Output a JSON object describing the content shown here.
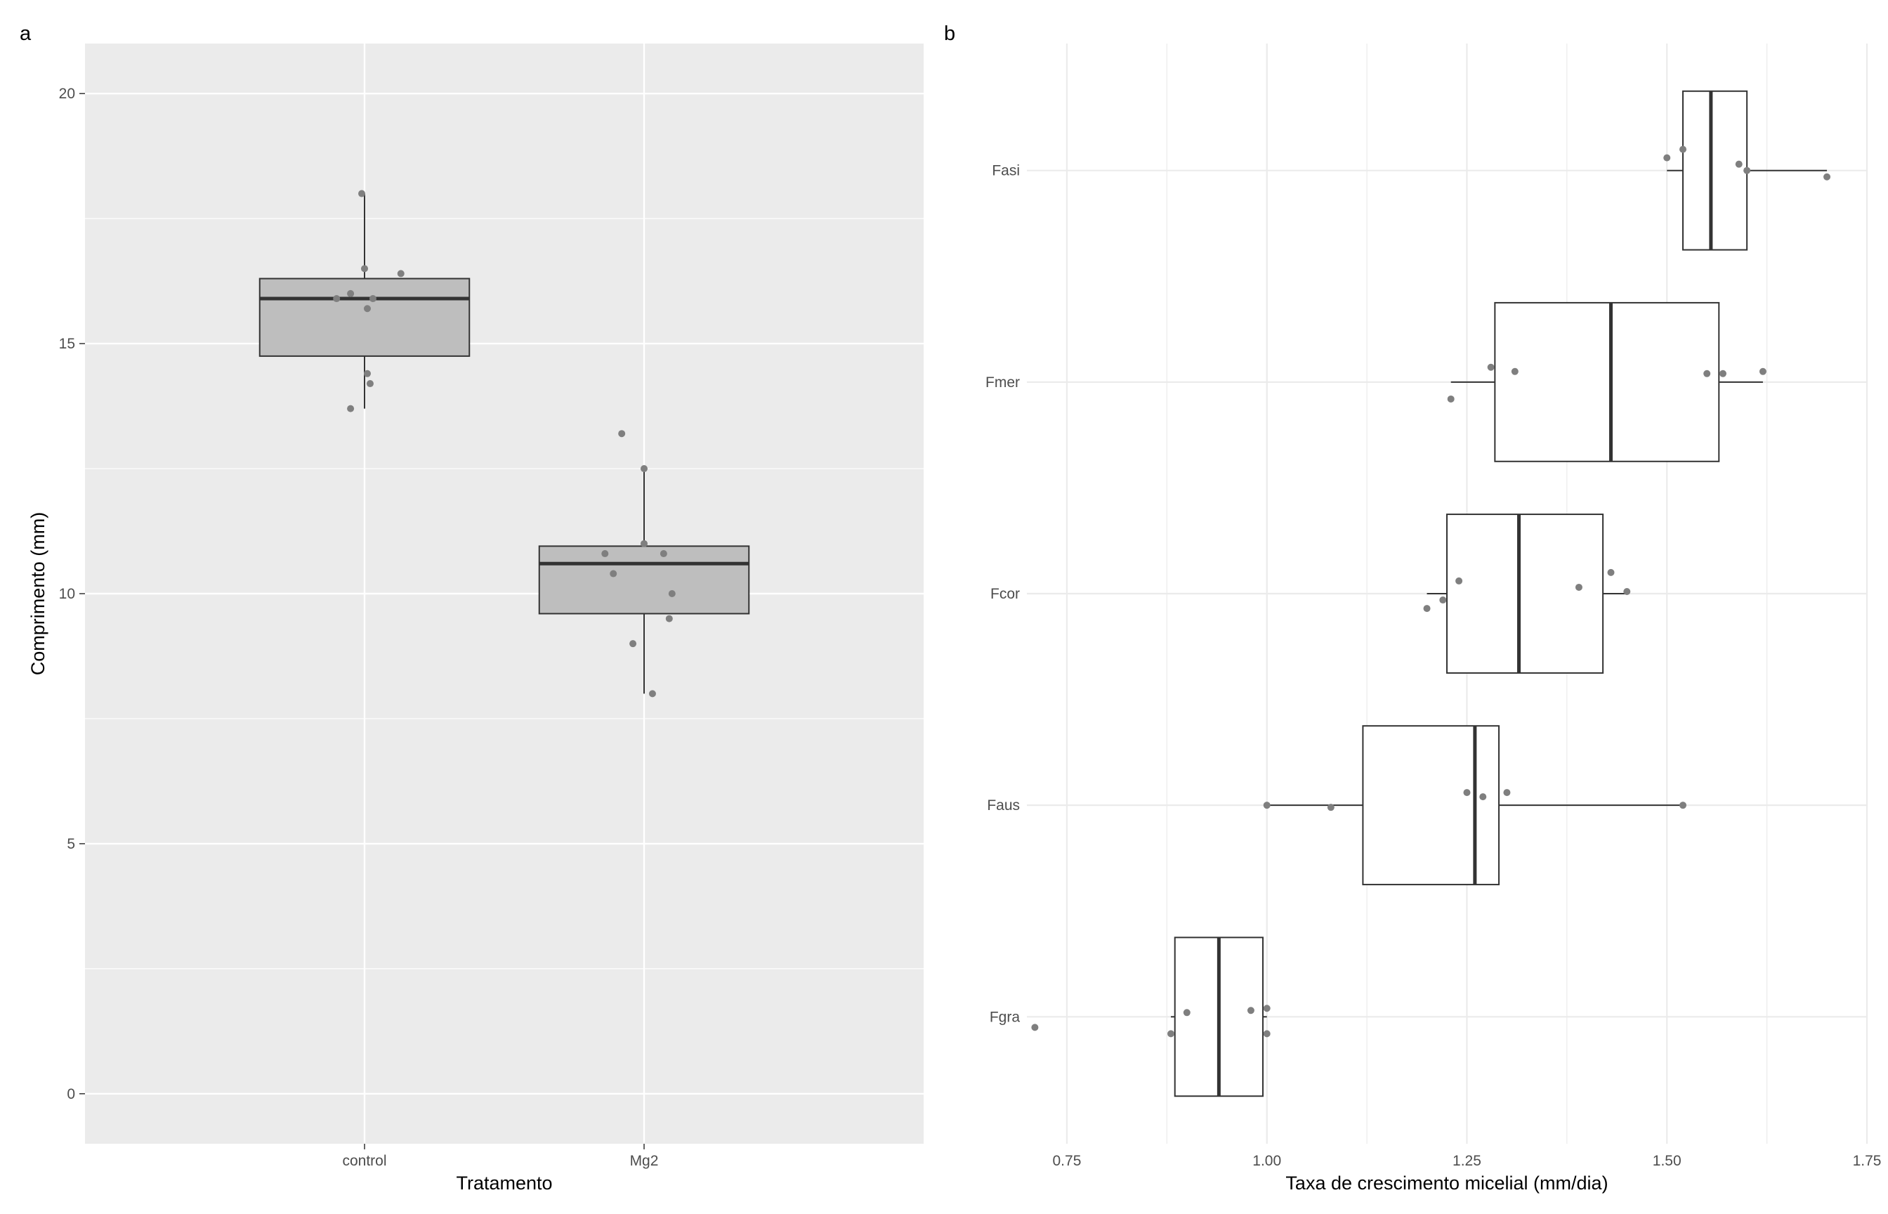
{
  "chart_data": [
    {
      "panel_label": "a",
      "type": "boxplot",
      "orientation": "vertical",
      "theme": "grey",
      "grid": true,
      "xlabel": "Tratamento",
      "ylabel": "Comprimento (mm)",
      "categories": [
        "control",
        "Mg2"
      ],
      "ylim": [
        -1,
        21
      ],
      "yticks": [
        0,
        5,
        10,
        15,
        20
      ],
      "box_fill": "#bebebe",
      "point_color": "#7f7f7f",
      "boxes": [
        {
          "category": "control",
          "whisker_low": 13.7,
          "q1": 14.75,
          "median": 15.9,
          "q3": 16.3,
          "whisker_high": 18.0
        },
        {
          "category": "Mg2",
          "whisker_low": 8.0,
          "q1": 9.6,
          "median": 10.6,
          "q3": 10.95,
          "whisker_high": 12.5
        }
      ],
      "points": [
        {
          "category": "control",
          "jitter": -0.1,
          "value": 15.9
        },
        {
          "category": "control",
          "jitter": -0.05,
          "value": 16.0
        },
        {
          "category": "control",
          "jitter": -0.01,
          "value": 18.0
        },
        {
          "category": "control",
          "jitter": 0.0,
          "value": 16.5
        },
        {
          "category": "control",
          "jitter": 0.01,
          "value": 15.7
        },
        {
          "category": "control",
          "jitter": 0.03,
          "value": 15.9
        },
        {
          "category": "control",
          "jitter": 0.13,
          "value": 16.4
        },
        {
          "category": "control",
          "jitter": 0.01,
          "value": 14.4
        },
        {
          "category": "control",
          "jitter": 0.02,
          "value": 14.2
        },
        {
          "category": "control",
          "jitter": -0.05,
          "value": 13.7
        },
        {
          "category": "Mg2",
          "jitter": -0.08,
          "value": 13.2
        },
        {
          "category": "Mg2",
          "jitter": 0.0,
          "value": 12.5
        },
        {
          "category": "Mg2",
          "jitter": 0.0,
          "value": 11.0
        },
        {
          "category": "Mg2",
          "jitter": -0.14,
          "value": 10.8
        },
        {
          "category": "Mg2",
          "jitter": 0.07,
          "value": 10.8
        },
        {
          "category": "Mg2",
          "jitter": -0.11,
          "value": 10.4
        },
        {
          "category": "Mg2",
          "jitter": 0.1,
          "value": 10.0
        },
        {
          "category": "Mg2",
          "jitter": 0.09,
          "value": 9.5
        },
        {
          "category": "Mg2",
          "jitter": -0.04,
          "value": 9.0
        },
        {
          "category": "Mg2",
          "jitter": 0.03,
          "value": 8.0
        }
      ]
    },
    {
      "panel_label": "b",
      "type": "boxplot",
      "orientation": "horizontal",
      "theme": "minimal",
      "grid": true,
      "xlabel": "Taxa de crescimento micelial (mm/dia)",
      "ylabel": "",
      "categories": [
        "Fgra",
        "Faus",
        "Fcor",
        "Fmer",
        "Fasi"
      ],
      "xlim": [
        0.7,
        1.75
      ],
      "xticks": [
        0.75,
        1.0,
        1.25,
        1.5,
        1.75
      ],
      "xtick_labels": [
        "0.75",
        "1.00",
        "1.25",
        "1.50",
        "1.75"
      ],
      "box_fill": "#ffffff",
      "point_color": "#7f7f7f",
      "boxes": [
        {
          "category": "Fgra",
          "whisker_low": 0.88,
          "q1": 0.885,
          "median": 0.94,
          "q3": 0.995,
          "whisker_high": 1.0
        },
        {
          "category": "Faus",
          "whisker_low": 1.0,
          "q1": 1.12,
          "median": 1.26,
          "q3": 1.29,
          "whisker_high": 1.52
        },
        {
          "category": "Fcor",
          "whisker_low": 1.2,
          "q1": 1.225,
          "median": 1.315,
          "q3": 1.42,
          "whisker_high": 1.45
        },
        {
          "category": "Fmer",
          "whisker_low": 1.23,
          "q1": 1.285,
          "median": 1.43,
          "q3": 1.565,
          "whisker_high": 1.62
        },
        {
          "category": "Fasi",
          "whisker_low": 1.5,
          "q1": 1.52,
          "median": 1.555,
          "q3": 1.6,
          "whisker_high": 1.7
        }
      ],
      "points": [
        {
          "category": "Fgra",
          "value": 0.71,
          "jitter": -0.05
        },
        {
          "category": "Fgra",
          "value": 0.88,
          "jitter": -0.08
        },
        {
          "category": "Fgra",
          "value": 0.9,
          "jitter": 0.02
        },
        {
          "category": "Fgra",
          "value": 0.98,
          "jitter": 0.03
        },
        {
          "category": "Fgra",
          "value": 1.0,
          "jitter": 0.04
        },
        {
          "category": "Fgra",
          "value": 1.0,
          "jitter": -0.08
        },
        {
          "category": "Faus",
          "value": 1.0,
          "jitter": 0.0
        },
        {
          "category": "Faus",
          "value": 1.08,
          "jitter": -0.01
        },
        {
          "category": "Faus",
          "value": 1.25,
          "jitter": 0.06
        },
        {
          "category": "Faus",
          "value": 1.27,
          "jitter": 0.04
        },
        {
          "category": "Faus",
          "value": 1.3,
          "jitter": 0.06
        },
        {
          "category": "Faus",
          "value": 1.52,
          "jitter": 0.0
        },
        {
          "category": "Fcor",
          "value": 1.2,
          "jitter": -0.07
        },
        {
          "category": "Fcor",
          "value": 1.22,
          "jitter": -0.03
        },
        {
          "category": "Fcor",
          "value": 1.24,
          "jitter": 0.06
        },
        {
          "category": "Fcor",
          "value": 1.39,
          "jitter": 0.03
        },
        {
          "category": "Fcor",
          "value": 1.43,
          "jitter": 0.1
        },
        {
          "category": "Fcor",
          "value": 1.45,
          "jitter": 0.01
        },
        {
          "category": "Fmer",
          "value": 1.23,
          "jitter": -0.08
        },
        {
          "category": "Fmer",
          "value": 1.28,
          "jitter": 0.07
        },
        {
          "category": "Fmer",
          "value": 1.31,
          "jitter": 0.05
        },
        {
          "category": "Fmer",
          "value": 1.55,
          "jitter": 0.04
        },
        {
          "category": "Fmer",
          "value": 1.57,
          "jitter": 0.04
        },
        {
          "category": "Fmer",
          "value": 1.62,
          "jitter": 0.05
        },
        {
          "category": "Fasi",
          "value": 1.5,
          "jitter": 0.06
        },
        {
          "category": "Fasi",
          "value": 1.52,
          "jitter": 0.1
        },
        {
          "category": "Fasi",
          "value": 1.59,
          "jitter": 0.03
        },
        {
          "category": "Fasi",
          "value": 1.6,
          "jitter": 0.0
        },
        {
          "category": "Fasi",
          "value": 1.7,
          "jitter": -0.03
        }
      ]
    }
  ]
}
